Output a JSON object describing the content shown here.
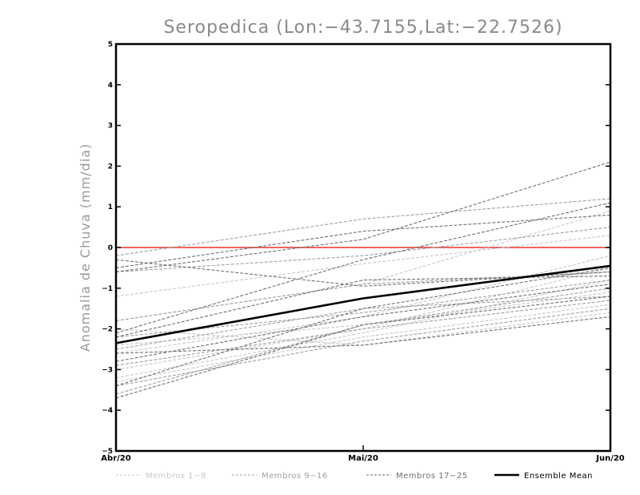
{
  "chart_data": {
    "type": "line",
    "title": "Seropedica (Lon:−43.7155,Lat:−22.7526)",
    "ylabel": "Anomalia de Chuva (mm/dia)",
    "xlabel": "",
    "categories": [
      "Abr/20",
      "Mai/20",
      "Jun/20"
    ],
    "ylim": [
      -5,
      5
    ],
    "yticks": [
      -5,
      -4,
      -3,
      -2,
      -1,
      0,
      1,
      2,
      3,
      4,
      5
    ],
    "reference_line": {
      "value": 0,
      "color": "#e8322c"
    },
    "legend_position": "bottom",
    "groups": [
      {
        "name": "Membros 1−8",
        "color": "#c8c8c8",
        "series": [
          {
            "values": [
              -1.2,
              -0.4,
              0.3
            ]
          },
          {
            "values": [
              -1.8,
              -0.9,
              0.9
            ]
          },
          {
            "values": [
              -2.6,
              -1.7,
              -0.2
            ]
          },
          {
            "values": [
              -3.0,
              -2.0,
              -0.5
            ]
          },
          {
            "values": [
              -3.3,
              -2.2,
              -1.4
            ]
          },
          {
            "values": [
              -2.0,
              -2.4,
              -1.6
            ]
          },
          {
            "values": [
              -3.2,
              -2.1,
              -0.8
            ]
          },
          {
            "values": [
              -2.4,
              -1.9,
              -1.1
            ]
          }
        ]
      },
      {
        "name": "Membros 9−16",
        "color": "#a0a0a0",
        "series": [
          {
            "values": [
              -0.2,
              0.7,
              1.2
            ]
          },
          {
            "values": [
              -0.6,
              -0.2,
              0.5
            ]
          },
          {
            "values": [
              -1.8,
              -0.9,
              -0.6
            ]
          },
          {
            "values": [
              -2.2,
              -1.6,
              -0.8
            ]
          },
          {
            "values": [
              -2.9,
              -2.0,
              -1.3
            ]
          },
          {
            "values": [
              -3.4,
              -2.3,
              -1.5
            ]
          },
          {
            "values": [
              -3.6,
              -1.9,
              -1.0
            ]
          },
          {
            "values": [
              -2.5,
              -1.5,
              -1.2
            ]
          }
        ]
      },
      {
        "name": "Membros 17−25",
        "color": "#707070",
        "series": [
          {
            "values": [
              -0.6,
              0.2,
              2.1
            ]
          },
          {
            "values": [
              -0.5,
              0.4,
              0.8
            ]
          },
          {
            "values": [
              -2.1,
              -0.3,
              1.1
            ]
          },
          {
            "values": [
              -0.3,
              -0.95,
              -0.6
            ]
          },
          {
            "values": [
              -2.8,
              -1.7,
              -0.9
            ]
          },
          {
            "values": [
              -3.4,
              -1.5,
              -0.5
            ]
          },
          {
            "values": [
              -2.2,
              -0.8,
              -0.7
            ]
          },
          {
            "values": [
              -3.7,
              -1.9,
              -1.2
            ]
          },
          {
            "values": [
              -2.6,
              -2.4,
              -1.7
            ]
          }
        ]
      },
      {
        "name": "Ensemble Mean",
        "color": "#000000",
        "series": [
          {
            "values": [
              -2.35,
              -1.25,
              -0.45
            ]
          }
        ]
      }
    ]
  }
}
